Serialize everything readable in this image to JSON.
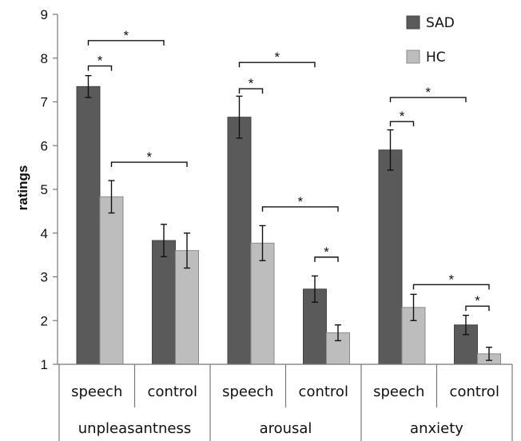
{
  "chart_data": {
    "type": "bar",
    "ylabel": "ratings",
    "ylim": [
      1,
      9
    ],
    "yticks": [
      "1",
      "2",
      "3",
      "4",
      "5",
      "6",
      "7",
      "8",
      "9"
    ],
    "grid": false,
    "legend_position": "top-right",
    "categories": [
      "speech",
      "control",
      "speech",
      "control",
      "speech",
      "control"
    ],
    "groups": [
      {
        "label": "unpleasantness",
        "categories": [
          0,
          1
        ]
      },
      {
        "label": "arousal",
        "categories": [
          2,
          3
        ]
      },
      {
        "label": "anxiety",
        "categories": [
          4,
          5
        ]
      }
    ],
    "series": [
      {
        "name": "SAD",
        "color": "#5a5a5a",
        "values": [
          7.35,
          3.83,
          6.65,
          2.72,
          5.9,
          1.9
        ],
        "errors": [
          0.25,
          0.37,
          0.48,
          0.3,
          0.46,
          0.22
        ]
      },
      {
        "name": "HC",
        "color": "#bdbdbd",
        "values": [
          4.83,
          3.6,
          3.77,
          1.72,
          2.3,
          1.24
        ],
        "errors": [
          0.37,
          0.4,
          0.4,
          0.18,
          0.3,
          0.15
        ]
      }
    ],
    "significance": [
      {
        "label": "*",
        "from": {
          "series": 0,
          "category": 0
        },
        "to": {
          "series": 1,
          "category": 0
        },
        "y": 7.82
      },
      {
        "label": "*",
        "from": {
          "series": 0,
          "category": 0
        },
        "to": {
          "series": 0,
          "category": 1
        },
        "y": 8.4
      },
      {
        "label": "*",
        "from": {
          "series": 1,
          "category": 0
        },
        "to": {
          "series": 1,
          "category": 1
        },
        "y": 5.62
      },
      {
        "label": "*",
        "from": {
          "series": 0,
          "category": 2
        },
        "to": {
          "series": 1,
          "category": 2
        },
        "y": 7.3
      },
      {
        "label": "*",
        "from": {
          "series": 0,
          "category": 2
        },
        "to": {
          "series": 0,
          "category": 3
        },
        "y": 7.9
      },
      {
        "label": "*",
        "from": {
          "series": 1,
          "category": 2
        },
        "to": {
          "series": 1,
          "category": 3
        },
        "y": 4.6
      },
      {
        "label": "*",
        "from": {
          "series": 0,
          "category": 3
        },
        "to": {
          "series": 1,
          "category": 3
        },
        "y": 3.45
      },
      {
        "label": "*",
        "from": {
          "series": 0,
          "category": 4
        },
        "to": {
          "series": 1,
          "category": 4
        },
        "y": 6.55
      },
      {
        "label": "*",
        "from": {
          "series": 0,
          "category": 4
        },
        "to": {
          "series": 0,
          "category": 5
        },
        "y": 7.1
      },
      {
        "label": "*",
        "from": {
          "series": 1,
          "category": 4
        },
        "to": {
          "series": 1,
          "category": 5
        },
        "y": 2.82
      },
      {
        "label": "*",
        "from": {
          "series": 0,
          "category": 5
        },
        "to": {
          "series": 1,
          "category": 5
        },
        "y": 2.33
      }
    ]
  }
}
